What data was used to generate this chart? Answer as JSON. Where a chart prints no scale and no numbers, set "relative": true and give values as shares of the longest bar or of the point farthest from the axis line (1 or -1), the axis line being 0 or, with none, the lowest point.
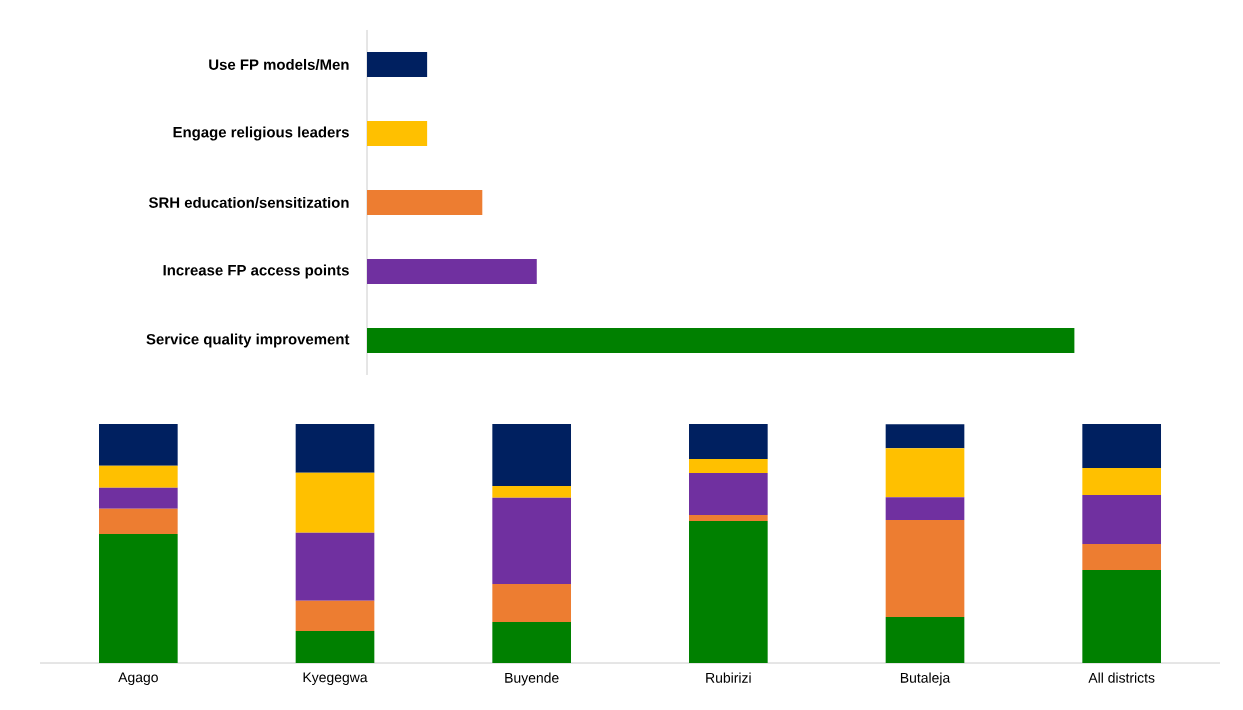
{
  "chart_data": [
    {
      "type": "bar",
      "orientation": "horizontal",
      "relative": true,
      "categories": [
        "Use FP models/Men",
        "Engage religious leaders",
        "SRH education/sensitization",
        "Increase FP access points",
        "Service quality improvement"
      ],
      "values": [
        0.085,
        0.085,
        0.163,
        0.24,
        1
      ],
      "colors": [
        "#002060",
        "#ffc000",
        "#ed7d31",
        "#7030a0",
        "#008000"
      ]
    },
    {
      "type": "bar",
      "stacked": true,
      "relative": true,
      "categories": [
        "Agago",
        "Kyegegwa",
        "Buyende",
        "Rubirizi",
        "Butaleja",
        "All districts"
      ],
      "series": [
        {
          "color": "#008000",
          "values": [
            0.54,
            0.134,
            0.172,
            0.594,
            0.192,
            0.389
          ]
        },
        {
          "color": "#ed7d31",
          "values": [
            0.105,
            0.126,
            0.159,
            0.025,
            0.406,
            0.109
          ]
        },
        {
          "color": "#7030a0",
          "values": [
            0.088,
            0.285,
            0.36,
            0.176,
            0.096,
            0.205
          ]
        },
        {
          "color": "#ffc000",
          "values": [
            0.092,
            0.251,
            0.05,
            0.059,
            0.205,
            0.113
          ]
        },
        {
          "color": "#002060",
          "values": [
            0.175,
            0.204,
            0.259,
            0.146,
            0.1,
            0.184
          ]
        }
      ]
    }
  ]
}
